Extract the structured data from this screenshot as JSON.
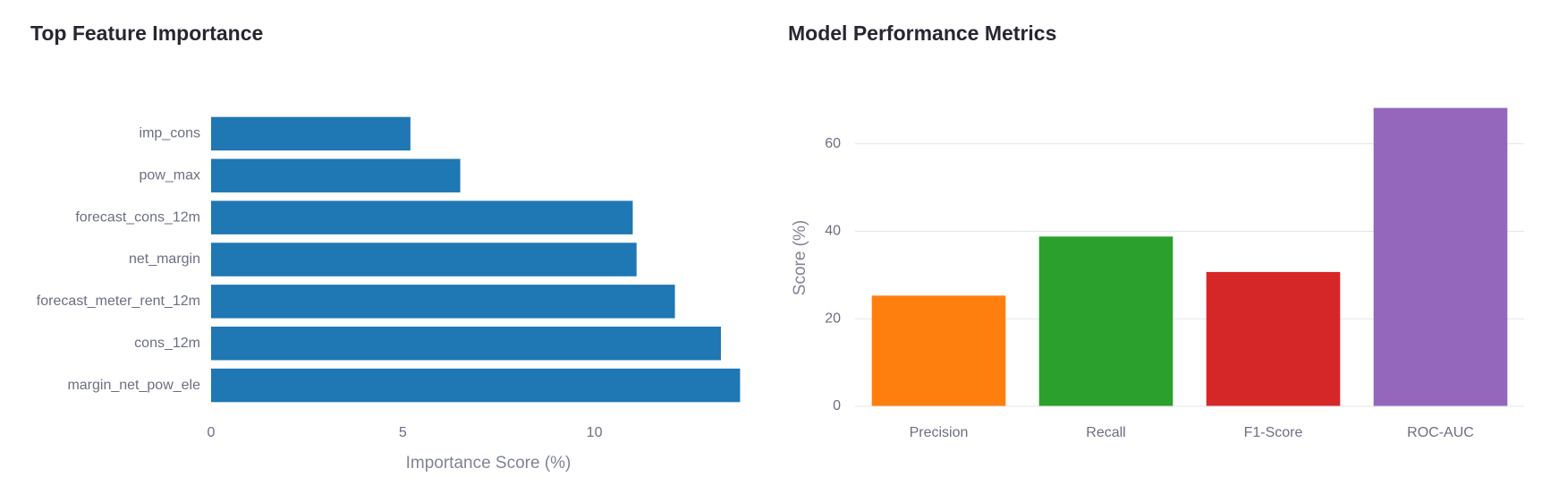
{
  "chart_data": [
    {
      "type": "bar",
      "orientation": "horizontal",
      "title": "Top Feature Importance",
      "xlabel": "Importance Score (%)",
      "ylabel": "",
      "xlim": [
        0,
        14
      ],
      "xticks": [
        0,
        5,
        10
      ],
      "grid": false,
      "color": "#1f77b4",
      "categories": [
        "imp_cons",
        "pow_max",
        "forecast_cons_12m",
        "net_margin",
        "forecast_meter_rent_12m",
        "cons_12m",
        "margin_net_pow_ele"
      ],
      "values": [
        5.2,
        6.5,
        11.0,
        11.1,
        12.1,
        13.3,
        13.8
      ]
    },
    {
      "type": "bar",
      "orientation": "vertical",
      "title": "Model Performance Metrics",
      "xlabel": "",
      "ylabel": "Score (%)",
      "ylim": [
        0,
        72
      ],
      "yticks": [
        0,
        20,
        40,
        60
      ],
      "grid": true,
      "categories": [
        "Precision",
        "Recall",
        "F1-Score",
        "ROC-AUC"
      ],
      "values": [
        25.3,
        38.8,
        30.7,
        68.2
      ],
      "colors": [
        "#ff7f0e",
        "#2ca02c",
        "#d62728",
        "#9467bd"
      ]
    }
  ]
}
